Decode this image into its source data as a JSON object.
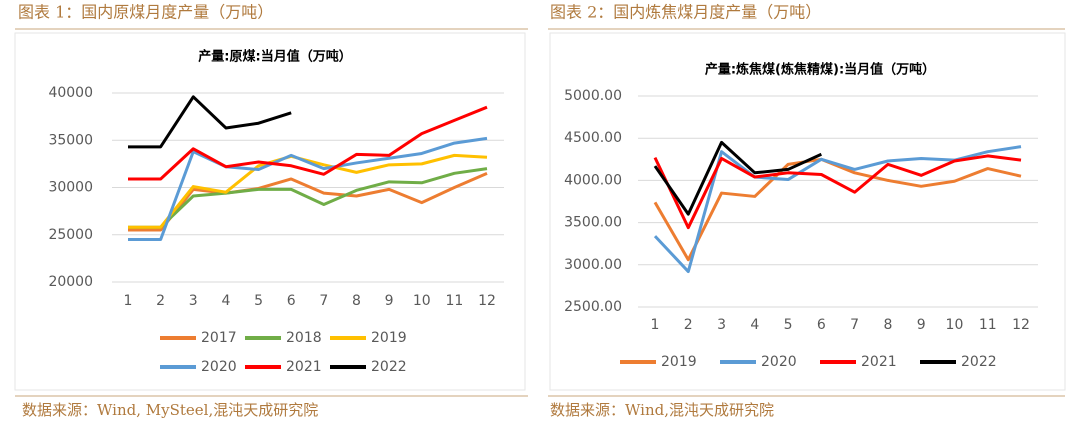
{
  "captions": [
    "图表 1：国内原煤月度产量（万吨）",
    "图表 2：国内炼焦煤月度产量（万吨）"
  ],
  "sources": [
    "数据来源：Wind, MySteel,混沌天成研究院",
    "数据来源：Wind,混沌天成研究院"
  ],
  "chart_data": [
    {
      "type": "line",
      "title": "产量:原煤:当月值（万吨）",
      "categories": [
        "1",
        "2",
        "3",
        "4",
        "5",
        "6",
        "7",
        "8",
        "9",
        "10",
        "11",
        "12"
      ],
      "ylim": [
        20000,
        40000
      ],
      "yticks": [
        20000,
        25000,
        30000,
        35000,
        40000
      ],
      "grid": true,
      "series": [
        {
          "name": "2017",
          "color": "#ed7d31",
          "values": [
            25500,
            25500,
            29800,
            29400,
            29900,
            30900,
            29400,
            29100,
            29800,
            28400,
            30000,
            31500
          ]
        },
        {
          "name": "2018",
          "color": "#70ad47",
          "values": [
            25800,
            25800,
            29100,
            29400,
            29800,
            29800,
            28200,
            29700,
            30600,
            30500,
            31500,
            32000
          ]
        },
        {
          "name": "2019",
          "color": "#ffc000",
          "values": [
            25800,
            25800,
            30100,
            29500,
            32300,
            33300,
            32400,
            31600,
            32400,
            32500,
            33400,
            33200
          ]
        },
        {
          "name": "2020",
          "color": "#5b9bd5",
          "values": [
            24500,
            24500,
            33800,
            32200,
            31900,
            33400,
            32000,
            32600,
            33100,
            33600,
            34700,
            35200
          ]
        },
        {
          "name": "2021",
          "color": "#ff0000",
          "values": [
            30900,
            30900,
            34100,
            32200,
            32700,
            32300,
            31400,
            33500,
            33400,
            35700,
            37100,
            38500
          ]
        },
        {
          "name": "2022",
          "color": "#000000",
          "values": [
            34300,
            34300,
            39600,
            36300,
            36800,
            37900,
            null,
            null,
            null,
            null,
            null,
            null
          ]
        }
      ]
    },
    {
      "type": "line",
      "title": "产量:炼焦煤(炼焦精煤):当月值（万吨）",
      "categories": [
        "1",
        "2",
        "3",
        "4",
        "5",
        "6",
        "7",
        "8",
        "9",
        "10",
        "11",
        "12"
      ],
      "ylim": [
        2500,
        5000
      ],
      "yticks": [
        {
          "value": 2500,
          "label": "2500.00"
        },
        {
          "value": 3000,
          "label": "3000.00"
        },
        {
          "value": 3500,
          "label": "3500.00"
        },
        {
          "value": 4000,
          "label": "4000.00"
        },
        {
          "value": 4500,
          "label": "4500.00"
        },
        {
          "value": 5000,
          "label": "5000.00"
        }
      ],
      "grid": true,
      "series": [
        {
          "name": "2019",
          "color": "#ed7d31",
          "values": [
            3740,
            3060,
            3850,
            3810,
            4190,
            4250,
            4090,
            4000,
            3930,
            3990,
            4140,
            4050
          ]
        },
        {
          "name": "2020",
          "color": "#5b9bd5",
          "values": [
            3340,
            2920,
            4340,
            4040,
            4010,
            4250,
            4130,
            4230,
            4260,
            4240,
            4340,
            4400
          ]
        },
        {
          "name": "2021",
          "color": "#ff0000",
          "values": [
            4270,
            3440,
            4260,
            4040,
            4090,
            4070,
            3860,
            4190,
            4060,
            4230,
            4290,
            4240
          ]
        },
        {
          "name": "2022",
          "color": "#000000",
          "values": [
            4170,
            3600,
            4450,
            4090,
            4130,
            4310,
            null,
            null,
            null,
            null,
            null,
            null
          ]
        }
      ]
    }
  ]
}
